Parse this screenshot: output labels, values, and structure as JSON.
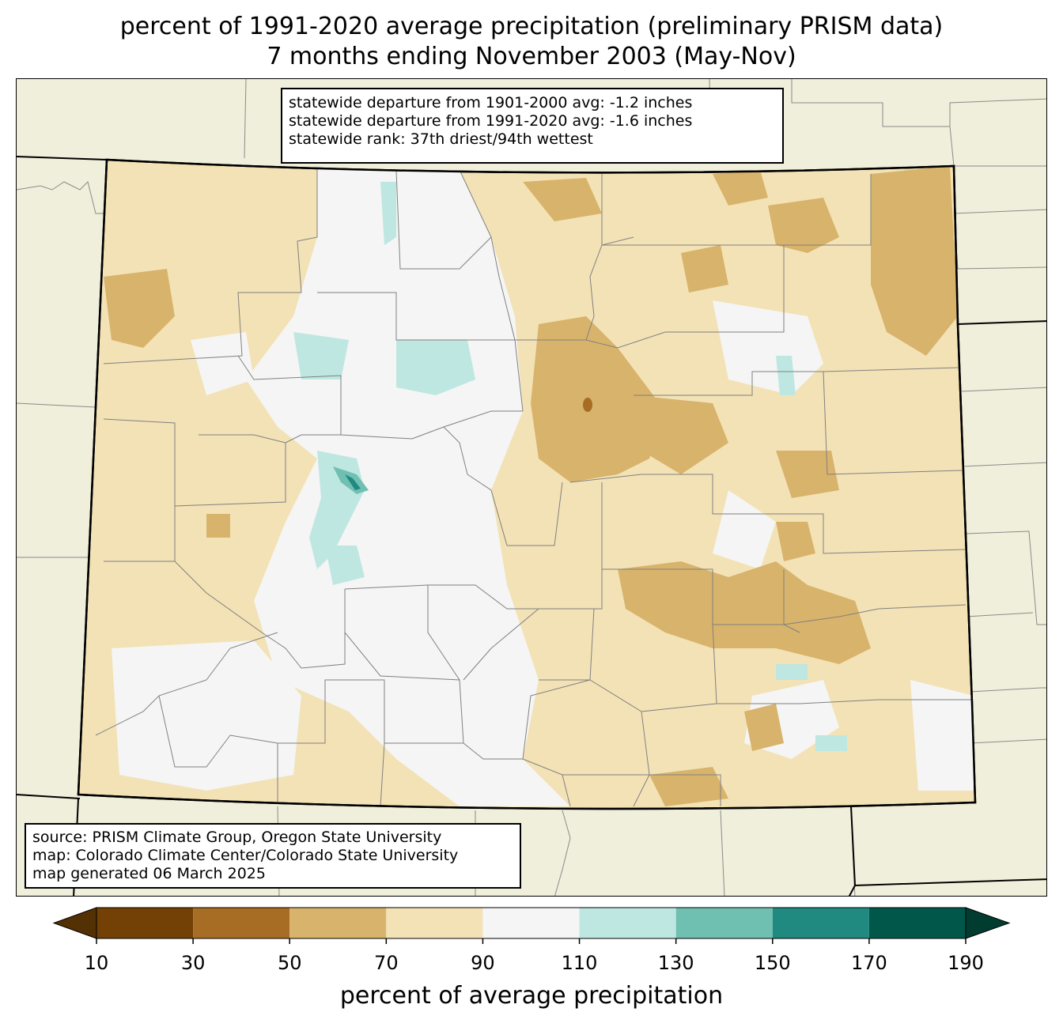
{
  "title": {
    "line1": "percent of 1991-2020 average precipitation (preliminary PRISM data)",
    "line2": "7 months ending November 2003 (May-Nov)"
  },
  "stats": {
    "line1": "statewide departure from 1901-2000 avg: -1.2 inches",
    "line2": "statewide departure from 1991-2020 avg: -1.6 inches",
    "line3": "statewide rank: 37th driest/94th wettest"
  },
  "source": {
    "line1": "source: PRISM Climate Group, Oregon State University",
    "line2": "map: Colorado Climate Center/Colorado State University",
    "line3": "map generated 06 March 2025"
  },
  "colorbar": {
    "label": "percent of average precipitation",
    "ticks": [
      "10",
      "30",
      "50",
      "70",
      "90",
      "110",
      "130",
      "150",
      "170",
      "190"
    ],
    "under_color": "#543005",
    "over_color": "#003c30",
    "bins": [
      {
        "from": 10,
        "to": 30,
        "color": "#734005"
      },
      {
        "from": 30,
        "to": 50,
        "color": "#a86d24"
      },
      {
        "from": 50,
        "to": 70,
        "color": "#d8b36b"
      },
      {
        "from": 70,
        "to": 90,
        "color": "#f3e2b6"
      },
      {
        "from": 90,
        "to": 110,
        "color": "#f4f5f4"
      },
      {
        "from": 110,
        "to": 130,
        "color": "#bfe7e1"
      },
      {
        "from": 130,
        "to": 150,
        "color": "#70c0b2"
      },
      {
        "from": 150,
        "to": 170,
        "color": "#218a80"
      },
      {
        "from": 170,
        "to": 190,
        "color": "#00574a"
      }
    ]
  },
  "map_colors": {
    "background": "#f0efdb",
    "state_fill": "#f3e2b6",
    "county_line": "#808080",
    "state_line": "#000000"
  }
}
